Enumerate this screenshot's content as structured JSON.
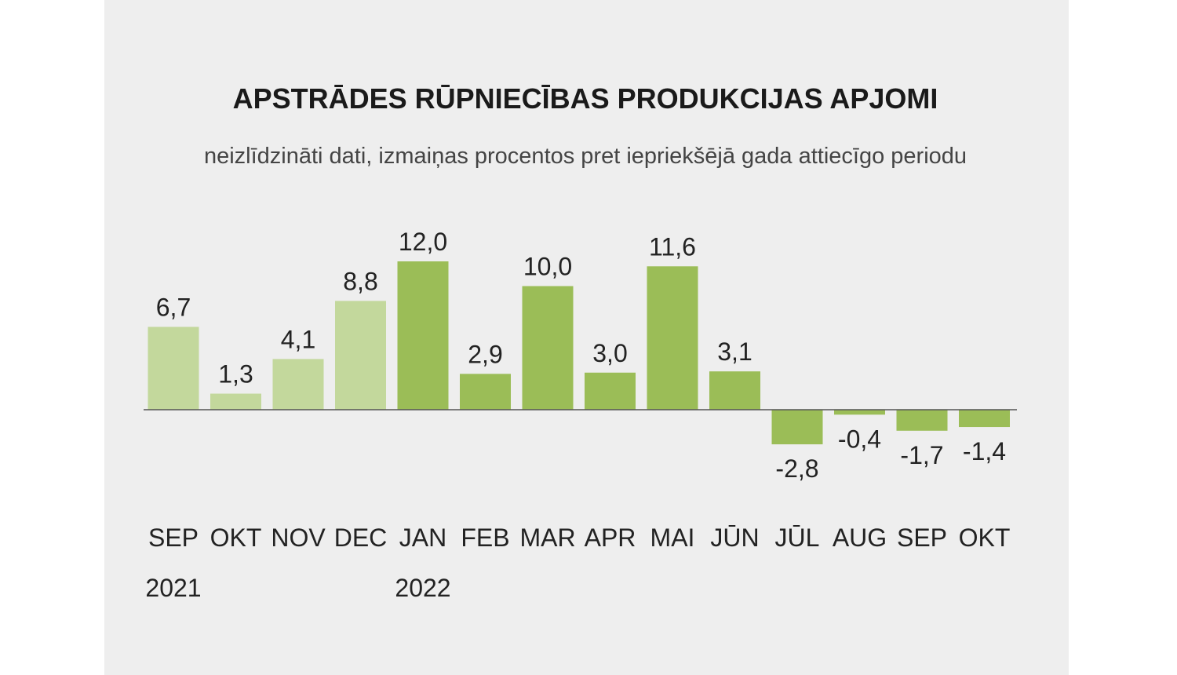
{
  "colors": {
    "panel_background": "#eeeeee",
    "bar_2021": "#c3d89c",
    "bar_2022": "#9bbd57",
    "baseline": "#555555"
  },
  "chart_data": {
    "type": "bar",
    "title": "APSTRĀDES RŪPNIECĪBAS PRODUKCIJAS APJOMI",
    "subtitle": "neizlīdzināti dati, izmaiņas procentos pret iepriekšējā gada attiecīgo periodu",
    "categories": [
      "SEP",
      "OKT",
      "NOV",
      "DEC",
      "JAN",
      "FEB",
      "MAR",
      "APR",
      "MAI",
      "JŪN",
      "JŪL",
      "AUG",
      "SEP",
      "OKT"
    ],
    "year_labels": [
      {
        "category_index": 0,
        "label": "2021"
      },
      {
        "category_index": 4,
        "label": "2022"
      }
    ],
    "values": [
      6.7,
      1.3,
      4.1,
      8.8,
      12.0,
      2.9,
      10.0,
      3.0,
      11.6,
      3.1,
      -2.8,
      -0.4,
      -1.7,
      -1.4
    ],
    "value_labels": [
      "6,7",
      "1,3",
      "4,1",
      "8,8",
      "12,0",
      "2,9",
      "10,0",
      "3,0",
      "11,6",
      "3,1",
      "-2,8",
      "-0,4",
      "-1,7",
      "-1,4"
    ],
    "bar_year_groups": [
      "2021",
      "2021",
      "2021",
      "2021",
      "2022",
      "2022",
      "2022",
      "2022",
      "2022",
      "2022",
      "2022",
      "2022",
      "2022",
      "2022"
    ],
    "xlabel": "",
    "ylabel": "",
    "grid": false,
    "legend": "none"
  }
}
